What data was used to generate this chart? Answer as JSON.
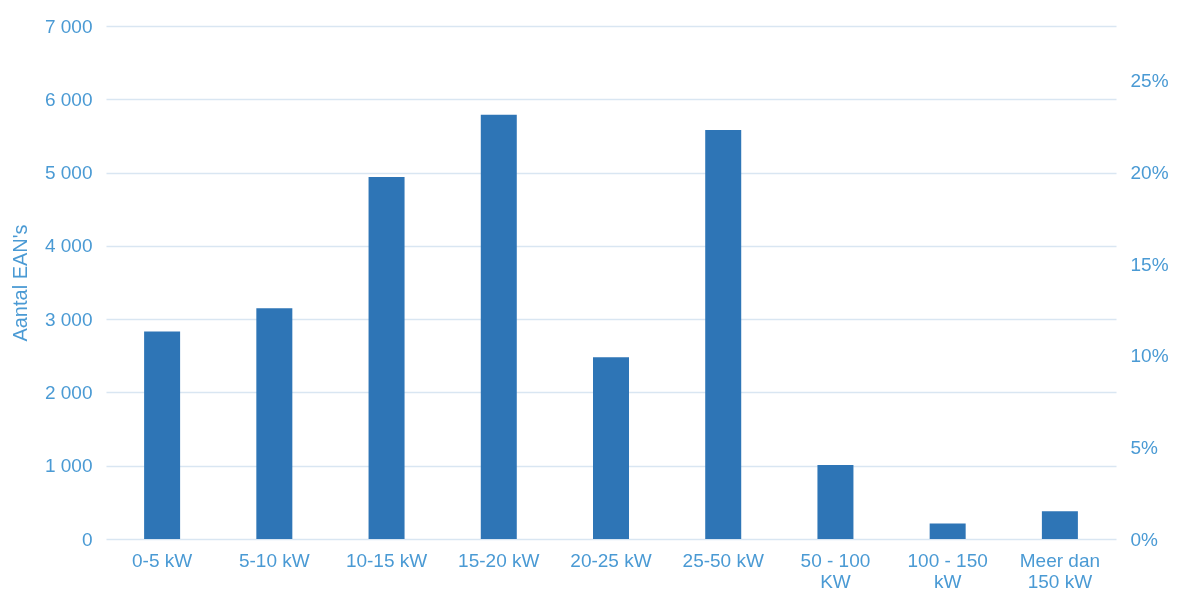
{
  "chart_data": {
    "type": "bar",
    "ylabel": "Aantal EAN's",
    "categories": [
      "0-5 kW",
      "5-10 kW",
      "10-15 kW",
      "15-20 kW",
      "20-25 kW",
      "25-50 kW",
      "50 - 100 KW",
      "100 - 150 kW",
      "Meer dan 150 kW"
    ],
    "values": [
      2830,
      3150,
      4940,
      5790,
      2480,
      5580,
      1010,
      210,
      380
    ],
    "color": "#2e75b6",
    "ylim": [
      0,
      7000
    ],
    "yticks": [
      {
        "value": 0,
        "label": "0"
      },
      {
        "value": 1000,
        "label": "1 000"
      },
      {
        "value": 2000,
        "label": "2 000"
      },
      {
        "value": 3000,
        "label": "3 000"
      },
      {
        "value": 4000,
        "label": "4 000"
      },
      {
        "value": 5000,
        "label": "5 000"
      },
      {
        "value": 6000,
        "label": "6 000"
      },
      {
        "value": 7000,
        "label": "7 000"
      }
    ],
    "y2lim": [
      0,
      28
    ],
    "y2ticks": [
      {
        "value": 0,
        "label": "0%"
      },
      {
        "value": 5,
        "label": "5%"
      },
      {
        "value": 10,
        "label": "10%"
      },
      {
        "value": 15,
        "label": "15%"
      },
      {
        "value": 20,
        "label": "20%"
      },
      {
        "value": 25,
        "label": "25%"
      }
    ],
    "grid": "y"
  }
}
